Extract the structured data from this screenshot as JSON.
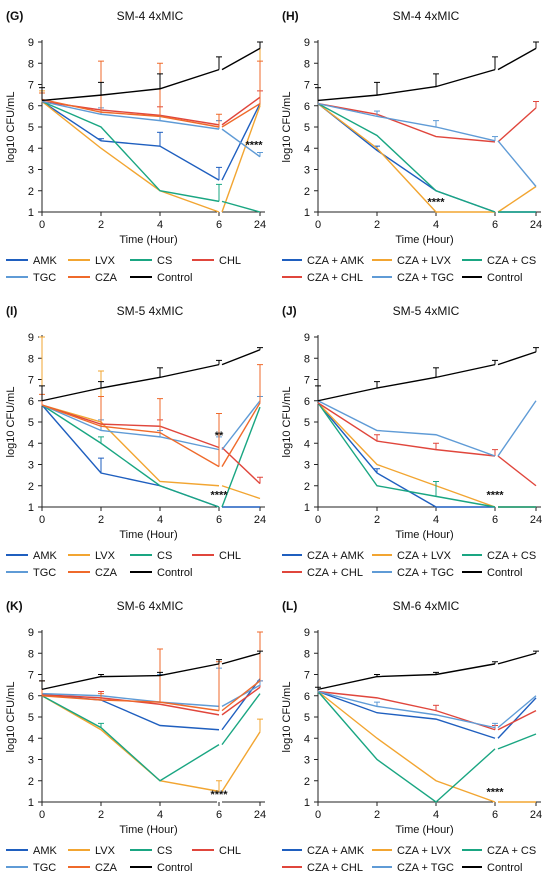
{
  "colors": {
    "AMK": "#1f5fbf",
    "LVX": "#f2a531",
    "CS": "#1aa682",
    "CHL": "#e0463c",
    "TGC": "#5f9bd6",
    "CZA": "#ef6a2b",
    "Control": "#000000",
    "CZA + AMK": "#1f5fbf",
    "CZA + LVX": "#f2a531",
    "CZA + CS": "#1aa682",
    "CZA + CHL": "#e0463c",
    "CZA + TGC": "#5f9bd6"
  },
  "chart_data": [
    {
      "type": "line",
      "letter": "(G)",
      "title": "SM-4 4xMIC",
      "xlabel": "Time (Hour)",
      "ylabel": "log10 CFU/mL",
      "x": [
        0,
        2,
        4,
        6,
        24
      ],
      "xticks": [
        "0",
        "2",
        "4",
        "6",
        "24"
      ],
      "ylim": [
        1,
        9
      ],
      "yticks": [
        "1",
        "2",
        "3",
        "4",
        "5",
        "6",
        "7",
        "8",
        "9"
      ],
      "annotations": [
        {
          "text": "****",
          "x": 24,
          "y": 4.0
        }
      ],
      "legend": [
        "AMK",
        "LVX",
        "CS",
        "CHL",
        "TGC",
        "CZA",
        "Control"
      ],
      "series": [
        {
          "name": "AMK",
          "values": [
            6.2,
            4.35,
            4.1,
            2.5,
            6.1
          ],
          "err": [
            0,
            0.1,
            0.65,
            0.6,
            0
          ]
        },
        {
          "name": "LVX",
          "values": [
            6.2,
            4.0,
            2.0,
            1.0,
            6.0
          ],
          "err": [
            0.5,
            0,
            0,
            0,
            3.0
          ]
        },
        {
          "name": "CS",
          "values": [
            6.2,
            5.0,
            2.0,
            1.5,
            1.0
          ],
          "err": [
            0,
            0,
            0,
            0.8,
            0
          ]
        },
        {
          "name": "CHL",
          "values": [
            6.2,
            5.8,
            5.55,
            5.1,
            6.4
          ],
          "err": [
            0,
            0,
            0.4,
            0.2,
            0.3
          ]
        },
        {
          "name": "TGC",
          "values": [
            6.2,
            5.6,
            5.3,
            4.9,
            3.6
          ],
          "err": [
            0,
            0.3,
            0.2,
            0.4,
            0.2
          ]
        },
        {
          "name": "CZA",
          "values": [
            6.3,
            5.7,
            5.5,
            5.0,
            6.1
          ],
          "err": [
            0.3,
            2.4,
            2.5,
            0.6,
            2.0
          ]
        },
        {
          "name": "Control",
          "values": [
            6.25,
            6.5,
            6.8,
            7.7,
            8.7
          ],
          "err": [
            0.6,
            0.6,
            0.7,
            0.6,
            0.3
          ]
        }
      ]
    },
    {
      "type": "line",
      "letter": "(H)",
      "title": "SM-4 4xMIC",
      "xlabel": "Time (Hour)",
      "ylabel": "log10 CFU/mL",
      "x": [
        0,
        2,
        4,
        6,
        24
      ],
      "xticks": [
        "0",
        "2",
        "4",
        "6",
        "24"
      ],
      "ylim": [
        1,
        9
      ],
      "yticks": [
        "1",
        "2",
        "3",
        "4",
        "5",
        "6",
        "7",
        "8",
        "9"
      ],
      "annotations": [
        {
          "text": "****",
          "x": 4,
          "y": 1.3
        }
      ],
      "legend": [
        "CZA + AMK",
        "CZA + LVX",
        "CZA + CS",
        "CZA + CHL",
        "CZA + TGC",
        "Control"
      ],
      "series": [
        {
          "name": "CZA + AMK",
          "values": [
            6.1,
            3.9,
            2.0,
            1.0,
            1.0
          ],
          "err": [
            0,
            0.2,
            0,
            0,
            0
          ]
        },
        {
          "name": "CZA + LVX",
          "values": [
            6.1,
            4.0,
            1.0,
            1.0,
            2.2
          ],
          "err": [
            0,
            0,
            0,
            0,
            0
          ]
        },
        {
          "name": "CZA + CS",
          "values": [
            6.1,
            4.6,
            2.0,
            1.0,
            1.0
          ],
          "err": [
            0,
            0,
            0,
            0,
            0
          ]
        },
        {
          "name": "CZA + CHL",
          "values": [
            6.1,
            5.6,
            4.55,
            4.3,
            5.9
          ],
          "err": [
            0,
            0,
            0,
            0,
            0.3
          ]
        },
        {
          "name": "CZA + TGC",
          "values": [
            6.1,
            5.5,
            5.0,
            4.35,
            2.2
          ],
          "err": [
            0,
            0.25,
            0.3,
            0.2,
            0
          ]
        },
        {
          "name": "Control",
          "values": [
            6.25,
            6.5,
            6.9,
            7.7,
            8.7
          ],
          "err": [
            0.6,
            0.6,
            0.6,
            0.6,
            0.3
          ]
        }
      ]
    },
    {
      "type": "line",
      "letter": "(I)",
      "title": "SM-5 4xMIC",
      "xlabel": "Time (Hour)",
      "ylabel": "log10 CFU/mL",
      "x": [
        0,
        2,
        4,
        6,
        24
      ],
      "xticks": [
        "0",
        "2",
        "4",
        "6",
        "24"
      ],
      "ylim": [
        1,
        9
      ],
      "yticks": [
        "1",
        "2",
        "3",
        "4",
        "5",
        "6",
        "7",
        "8",
        "9"
      ],
      "annotations": [
        {
          "text": "**",
          "x": 6,
          "y": 4.2
        },
        {
          "text": "****",
          "x": 6,
          "y": 1.4
        }
      ],
      "legend": [
        "AMK",
        "LVX",
        "CS",
        "CHL",
        "TGC",
        "CZA",
        "Control"
      ],
      "series": [
        {
          "name": "AMK",
          "values": [
            5.8,
            2.6,
            2.0,
            1.0,
            1.0
          ],
          "err": [
            0,
            0.7,
            0,
            0,
            0
          ]
        },
        {
          "name": "LVX",
          "values": [
            5.8,
            5.0,
            2.2,
            2.0,
            1.4
          ],
          "err": [
            3.5,
            2.4,
            0,
            0,
            0
          ]
        },
        {
          "name": "CS",
          "values": [
            5.8,
            4.0,
            2.0,
            1.0,
            5.7
          ],
          "err": [
            0,
            0.3,
            0,
            0,
            0
          ]
        },
        {
          "name": "CHL",
          "values": [
            5.8,
            4.9,
            4.8,
            3.8,
            2.1
          ],
          "err": [
            0,
            0,
            0.3,
            0,
            0.3
          ]
        },
        {
          "name": "TGC",
          "values": [
            5.8,
            4.6,
            4.3,
            3.7,
            6.0
          ],
          "err": [
            0,
            0.5,
            0.3,
            0.6,
            0.2
          ]
        },
        {
          "name": "CZA",
          "values": [
            5.8,
            4.8,
            4.5,
            2.9,
            5.9
          ],
          "err": [
            0.5,
            1.4,
            1.6,
            2.5,
            1.8
          ]
        },
        {
          "name": "Control",
          "values": [
            6.0,
            6.6,
            7.1,
            7.7,
            8.4
          ],
          "err": [
            0.7,
            0.3,
            0.45,
            0.2,
            0.1
          ]
        }
      ]
    },
    {
      "type": "line",
      "letter": "(J)",
      "title": "SM-5 4xMIC",
      "xlabel": "Time (Hour)",
      "ylabel": "log10 CFU/mL",
      "x": [
        0,
        2,
        4,
        6,
        24
      ],
      "xticks": [
        "0",
        "2",
        "4",
        "6",
        "24"
      ],
      "ylim": [
        1,
        9
      ],
      "yticks": [
        "1",
        "2",
        "3",
        "4",
        "5",
        "6",
        "7",
        "8",
        "9"
      ],
      "annotations": [
        {
          "text": "****",
          "x": 6,
          "y": 1.4
        }
      ],
      "legend": [
        "CZA + AMK",
        "CZA + LVX",
        "CZA + CS",
        "CZA + CHL",
        "CZA + TGC",
        "Control"
      ],
      "series": [
        {
          "name": "CZA + AMK",
          "values": [
            5.9,
            2.6,
            1.0,
            1.0,
            1.0
          ],
          "err": [
            0,
            0.2,
            0,
            0,
            0
          ]
        },
        {
          "name": "CZA + LVX",
          "values": [
            5.9,
            3.0,
            2.0,
            1.0,
            1.0
          ],
          "err": [
            0,
            0,
            0.2,
            0,
            0
          ]
        },
        {
          "name": "CZA + CS",
          "values": [
            5.9,
            2.0,
            1.5,
            1.0,
            1.0
          ],
          "err": [
            0,
            0,
            0.7,
            0,
            0
          ]
        },
        {
          "name": "CZA + CHL",
          "values": [
            5.9,
            4.1,
            3.7,
            3.4,
            2.0
          ],
          "err": [
            0,
            0.3,
            0.3,
            0.3,
            0
          ]
        },
        {
          "name": "CZA + TGC",
          "values": [
            6.0,
            4.6,
            4.4,
            3.4,
            6.0
          ],
          "err": [
            0,
            0,
            0,
            0,
            0
          ]
        },
        {
          "name": "Control",
          "values": [
            6.0,
            6.6,
            7.1,
            7.7,
            8.3
          ],
          "err": [
            0.7,
            0.3,
            0.45,
            0.2,
            0.2
          ]
        }
      ]
    },
    {
      "type": "line",
      "letter": "(K)",
      "title": "SM-6 4xMIC",
      "xlabel": "Time (Hour)",
      "ylabel": "log10 CFU/mL",
      "x": [
        0,
        2,
        4,
        6,
        24
      ],
      "xticks": [
        "0",
        "2",
        "4",
        "6",
        "24"
      ],
      "ylim": [
        1,
        9
      ],
      "yticks": [
        "1",
        "2",
        "3",
        "4",
        "5",
        "6",
        "7",
        "8",
        "9"
      ],
      "annotations": [
        {
          "text": "****",
          "x": 6,
          "y": 1.2
        }
      ],
      "legend": [
        "AMK",
        "LVX",
        "CS",
        "CHL",
        "TGC",
        "CZA",
        "Control"
      ],
      "series": [
        {
          "name": "AMK",
          "values": [
            6.05,
            5.8,
            4.6,
            4.4,
            6.8
          ],
          "err": [
            0,
            0,
            0,
            0,
            0
          ]
        },
        {
          "name": "LVX",
          "values": [
            6.0,
            4.4,
            2.0,
            1.5,
            4.3
          ],
          "err": [
            0,
            0,
            0,
            0.5,
            0.6
          ]
        },
        {
          "name": "CS",
          "values": [
            6.0,
            4.5,
            2.0,
            3.7,
            6.1
          ],
          "err": [
            0,
            0.2,
            0,
            0,
            0
          ]
        },
        {
          "name": "CHL",
          "values": [
            6.05,
            5.9,
            5.6,
            5.1,
            6.4
          ],
          "err": [
            0,
            0.3,
            0,
            0,
            0.3
          ]
        },
        {
          "name": "TGC",
          "values": [
            6.1,
            6.0,
            5.7,
            5.5,
            6.5
          ],
          "err": [
            0,
            0,
            1.3,
            1.8,
            0.2
          ]
        },
        {
          "name": "CZA",
          "values": [
            6.0,
            5.8,
            5.7,
            5.3,
            6.7
          ],
          "err": [
            0.7,
            0.3,
            2.5,
            2.3,
            2.4
          ]
        },
        {
          "name": "Control",
          "values": [
            6.3,
            6.9,
            6.95,
            7.5,
            8.0
          ],
          "err": [
            0.4,
            0.1,
            0.15,
            0.2,
            0.1
          ]
        }
      ]
    },
    {
      "type": "line",
      "letter": "(L)",
      "title": "SM-6 4xMIC",
      "xlabel": "Time (Hour)",
      "ylabel": "log10 CFU/mL",
      "x": [
        0,
        2,
        4,
        6,
        24
      ],
      "xticks": [
        "0",
        "2",
        "4",
        "6",
        "24"
      ],
      "ylim": [
        1,
        9
      ],
      "yticks": [
        "1",
        "2",
        "3",
        "4",
        "5",
        "6",
        "7",
        "8",
        "9"
      ],
      "annotations": [
        {
          "text": "****",
          "x": 6,
          "y": 1.3
        }
      ],
      "legend": [
        "CZA + AMK",
        "CZA + LVX",
        "CZA + CS",
        "CZA + CHL",
        "CZA + TGC",
        "Control"
      ],
      "series": [
        {
          "name": "CZA + AMK",
          "values": [
            6.2,
            5.2,
            4.9,
            4.0,
            5.9
          ],
          "err": [
            0,
            0,
            0,
            0,
            0
          ]
        },
        {
          "name": "CZA + LVX",
          "values": [
            6.2,
            4.0,
            2.0,
            1.0,
            1.0
          ],
          "err": [
            0,
            0,
            0,
            0,
            0
          ]
        },
        {
          "name": "CZA + CS",
          "values": [
            6.2,
            3.0,
            1.0,
            3.5,
            4.2
          ],
          "err": [
            0,
            0,
            0,
            0,
            0
          ]
        },
        {
          "name": "CZA + CHL",
          "values": [
            6.2,
            5.9,
            5.3,
            4.4,
            5.3
          ],
          "err": [
            0,
            0,
            0.25,
            0.2,
            0
          ]
        },
        {
          "name": "CZA + TGC",
          "values": [
            6.2,
            5.5,
            5.1,
            4.5,
            6.0
          ],
          "err": [
            0,
            0.2,
            0,
            0.2,
            0
          ]
        },
        {
          "name": "Control",
          "values": [
            6.3,
            6.9,
            7.0,
            7.5,
            8.0
          ],
          "err": [
            0.1,
            0.1,
            0.1,
            0.1,
            0.1
          ]
        }
      ]
    }
  ]
}
